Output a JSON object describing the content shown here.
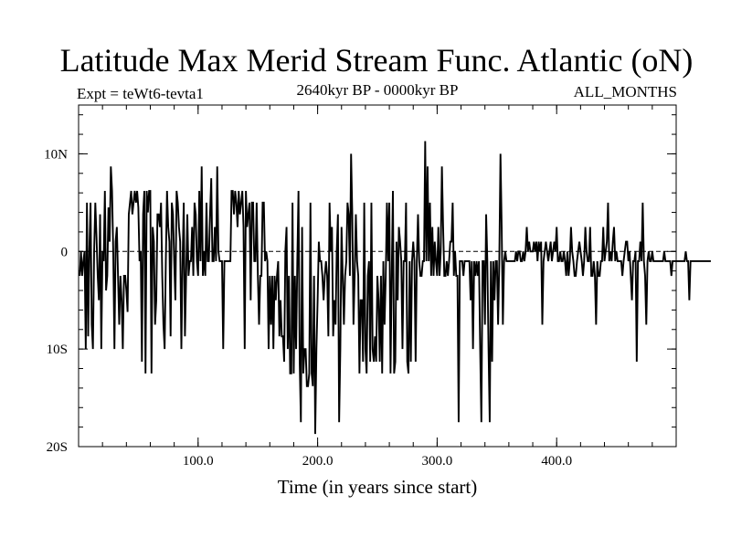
{
  "chart_data": {
    "type": "line",
    "title": "Latitude Max Merid Stream Func. Atlantic (oN)",
    "subtitle_left": "Expt = teWt6-tevta1",
    "subtitle_center": "2640kyr BP - 0000kyr BP",
    "subtitle_right": "ALL_MONTHS",
    "xlabel": "Time (in years since start)",
    "ylabel": "",
    "xlim": [
      0,
      500
    ],
    "ylim": [
      -20,
      15
    ],
    "x_ticks": [
      {
        "value": 100,
        "label": "100.0"
      },
      {
        "value": 200,
        "label": "200.0"
      },
      {
        "value": 300,
        "label": "300.0"
      },
      {
        "value": 400,
        "label": "400.0"
      }
    ],
    "y_ticks": [
      {
        "value": 10,
        "label": "10N"
      },
      {
        "value": 0,
        "label": "0"
      },
      {
        "value": -10,
        "label": "10S"
      },
      {
        "value": -20,
        "label": "20S"
      }
    ],
    "zero_line": true,
    "series": [
      {
        "name": "latitude_max_stream_function",
        "color": "#000000",
        "x_start": 1,
        "x_step": 1,
        "values": [
          -2.5,
          0,
          -2.5,
          -1,
          0,
          -10,
          5,
          -8.7,
          0,
          5,
          -7.5,
          -10,
          0,
          5,
          1.5,
          -2.5,
          -5,
          3.8,
          -10,
          0,
          -1,
          6.2,
          -4,
          -2.5,
          4.5,
          1,
          8.7,
          6.2,
          0,
          -10,
          1,
          2.5,
          -2.5,
          -7.5,
          -2.5,
          -5,
          -10,
          -2.5,
          -2.5,
          -4,
          -6.2,
          3.8,
          5,
          6.2,
          3.8,
          5,
          6.2,
          5,
          6.2,
          4.5,
          -1,
          0,
          -11.3,
          3.8,
          6.2,
          -12.5,
          6.2,
          4,
          6.2,
          6.2,
          -12.5,
          2.5,
          1,
          -7.5,
          -5,
          3.8,
          3.8,
          2.5,
          5,
          -2.5,
          -7.5,
          -10,
          -1,
          6.2,
          2.5,
          1,
          -8.7,
          5,
          3.8,
          -1,
          -5,
          6.2,
          5,
          2.5,
          1,
          -10,
          -1,
          5,
          -8.7,
          -2.5,
          3.8,
          -2.5,
          -1,
          -1,
          2.5,
          -2.5,
          5,
          3.8,
          -1,
          -2.5,
          6.2,
          -1,
          8.7,
          -2.5,
          0,
          -2.5,
          5,
          -1,
          -1,
          3.8,
          7.5,
          -1,
          -1,
          2.5,
          -1,
          8.7,
          0,
          -1,
          -1,
          -1,
          -10,
          -1,
          -1,
          -1,
          -1,
          -1,
          -1,
          6.2,
          6.2,
          3.8,
          6.2,
          5,
          2.5,
          6.2,
          3.8,
          5,
          6.2,
          2.5,
          -10,
          6.2,
          2.5,
          3.8,
          5,
          -5,
          5,
          5,
          -1,
          -1,
          5,
          -2.5,
          -7.5,
          -2.5,
          -2.5,
          5,
          5,
          -1,
          0,
          -1,
          -10,
          -2.5,
          -7.5,
          -2.5,
          -10,
          -2.5,
          -5,
          -2.5,
          -1,
          -8.7,
          -5,
          -8.7,
          -8.7,
          -11.3,
          0,
          2.5,
          -10,
          -2.5,
          -12.5,
          -12.5,
          5,
          -12.5,
          -2.5,
          -10,
          -1,
          6.2,
          -11.3,
          -17.5,
          2.5,
          -12.5,
          -10,
          -10,
          -13.8,
          -13.8,
          -12.5,
          5,
          -12.5,
          -13.8,
          -2.5,
          -18.7,
          -10,
          -5,
          1,
          -1,
          -1,
          -2.5,
          -5,
          -2.5,
          -1,
          -2.5,
          -8.7,
          5,
          0,
          2.5,
          -8.7,
          -5,
          -7.5,
          0,
          3.8,
          -17.5,
          -10,
          2.5,
          -2.5,
          -7.5,
          -2.5,
          -1,
          5,
          3.8,
          -2.5,
          10,
          3.8,
          -7.5,
          -2.5,
          3.8,
          -1,
          -2.5,
          -12.5,
          -5,
          -5,
          -11.3,
          5,
          -10,
          -12.5,
          -2.5,
          -1,
          -11.3,
          5,
          -10,
          -11.3,
          -8.7,
          -11.3,
          -2.5,
          -5,
          -11.3,
          -2.5,
          -12.5,
          -1,
          -7.5,
          -2.5,
          5,
          -1,
          5,
          -12.5,
          -2.5,
          6.2,
          -12.5,
          -11.3,
          1,
          -5,
          2.5,
          1,
          -1,
          -10,
          -1,
          -1,
          5,
          -11.3,
          -12.5,
          -1,
          -11.3,
          -1,
          1,
          -1,
          -11.3,
          -1,
          3.8,
          -1,
          -2.5,
          -2.5,
          -1,
          -1,
          11.3,
          -1,
          8.7,
          -1,
          5,
          -2.5,
          2.5,
          -2.5,
          1,
          -1,
          -2.5,
          2.5,
          -2.5,
          0,
          8.7,
          2.5,
          -2.5,
          -2.5,
          -1,
          -2.5,
          -1,
          1,
          1,
          5,
          -2.5,
          0,
          -2.5,
          -2.5,
          -17.5,
          -1,
          -1,
          -1,
          -2.5,
          -1,
          -1,
          -1,
          -1,
          -1,
          -5,
          -1,
          -10,
          -1,
          -2.5,
          -1,
          -2.5,
          -1,
          -10,
          -17.5,
          -1,
          -1,
          -7.5,
          3.8,
          -1,
          -10,
          -17.5,
          -1,
          -11.3,
          -1,
          -5,
          -1,
          -1,
          -7.5,
          -1,
          10,
          2.5,
          -7.5,
          -1,
          0,
          -1,
          -1,
          -1,
          -1,
          -1,
          -1,
          -1,
          -1,
          0,
          -1,
          0,
          0,
          -1,
          -1,
          0,
          -1,
          0,
          2.5,
          0,
          1,
          0,
          0,
          0,
          1,
          0,
          1,
          -1,
          1,
          0,
          1,
          -7.5,
          -1,
          0,
          1,
          0,
          -1,
          0,
          1,
          -1,
          0,
          1,
          0,
          2.5,
          -1,
          -1,
          0,
          -1,
          -1,
          0,
          -1,
          -2.5,
          0,
          -2.5,
          -1,
          2.5,
          0,
          -1,
          -2.5,
          -2.5,
          -1,
          0,
          1,
          0,
          -1,
          -2.5,
          -1,
          2.5,
          0,
          -1,
          -1,
          2.5,
          -2.5,
          -2.5,
          -1,
          -2.5,
          -7.5,
          -1,
          -2.5,
          -2.5,
          -1,
          -1,
          2.5,
          -1,
          0,
          1,
          5,
          -1,
          0,
          -1,
          1,
          2.5,
          -1,
          0,
          -1,
          -1,
          -1,
          -1,
          -2.5,
          -1,
          0,
          1,
          1,
          -1,
          0,
          -2.5,
          -5,
          -1,
          -1,
          0,
          -11.3,
          -1,
          -1,
          1,
          -1,
          5,
          -1,
          -2.5,
          -7.5,
          -1,
          0,
          -1,
          -1,
          0,
          -1,
          -1,
          -1,
          -1,
          -1,
          -1,
          -1,
          -1,
          -1,
          0,
          -1,
          -1,
          -1,
          -1,
          -1,
          -2.5,
          -1,
          -1,
          -1,
          -1,
          -1,
          -1,
          -1,
          -1,
          -1,
          -1,
          -1,
          0,
          -1,
          -1,
          -5,
          -1,
          -1,
          -1,
          -1,
          -1,
          -1,
          -1,
          -1,
          -1,
          -1,
          -1,
          -1,
          -1,
          -1,
          -1,
          -1,
          -1,
          -1
        ]
      }
    ]
  }
}
